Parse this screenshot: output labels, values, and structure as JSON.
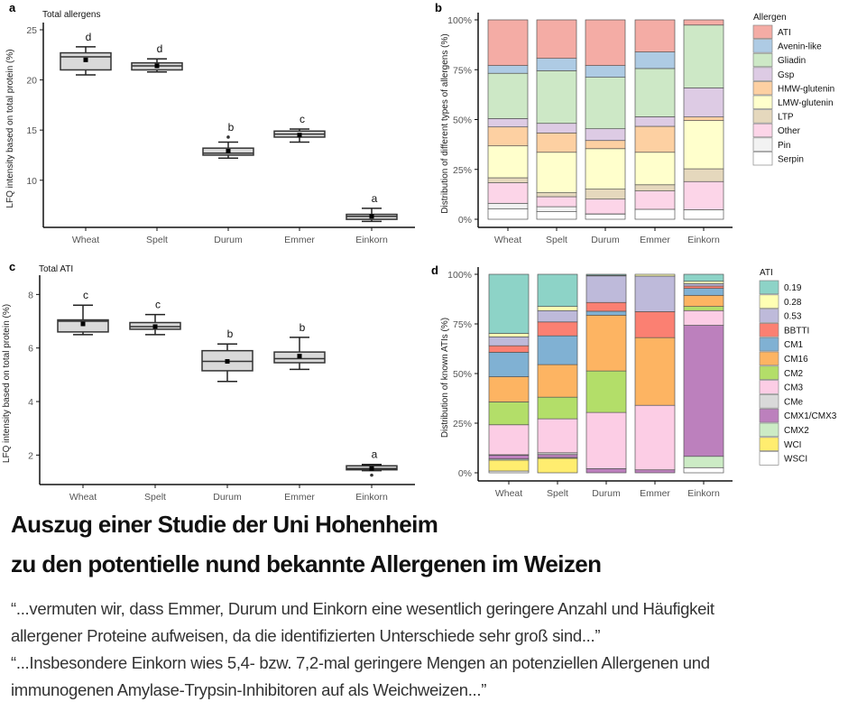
{
  "chart_data": [
    {
      "panel": "a",
      "type": "box",
      "title": "Total allergens",
      "ylabel": "LFQ intensity based on total protein (%)",
      "categories": [
        "Wheat",
        "Spelt",
        "Durum",
        "Emmer",
        "Einkorn"
      ],
      "ylim": [
        5.3,
        25
      ],
      "yticks": [
        10,
        15,
        20,
        25
      ],
      "boxes": [
        {
          "low": 20.5,
          "q1": 21.0,
          "median": 22.3,
          "q3": 22.7,
          "high": 23.3,
          "mean": 22.0,
          "outliers": [],
          "letter": "d"
        },
        {
          "low": 20.8,
          "q1": 21.0,
          "median": 21.4,
          "q3": 21.7,
          "high": 22.1,
          "mean": 21.4,
          "outliers": [],
          "letter": "d"
        },
        {
          "low": 12.2,
          "q1": 12.5,
          "median": 12.7,
          "q3": 13.2,
          "high": 13.8,
          "mean": 12.9,
          "outliers": [
            14.3
          ],
          "letter": "b"
        },
        {
          "low": 13.8,
          "q1": 14.3,
          "median": 14.6,
          "q3": 14.9,
          "high": 15.1,
          "mean": 14.5,
          "outliers": [],
          "letter": "c"
        },
        {
          "low": 5.9,
          "q1": 6.1,
          "median": 6.4,
          "q3": 6.6,
          "high": 7.2,
          "mean": 6.4,
          "outliers": [],
          "letter": "a"
        }
      ],
      "box_color": "#d9d9d9"
    },
    {
      "panel": "b",
      "type": "stacked-bar",
      "ylabel": "Distribution of different types of allergens (%)",
      "categories": [
        "Wheat",
        "Spelt",
        "Durum",
        "Emmer",
        "Einkorn"
      ],
      "ylim": [
        0,
        100
      ],
      "yticks": [
        "0%",
        "25%",
        "50%",
        "75%",
        "100%"
      ],
      "legend_title": "Allergen",
      "legend_position": "right",
      "series": [
        {
          "name": "ATI",
          "color": "#f4aca5",
          "values": [
            22.9,
            19.3,
            22.9,
            16.1,
            2.6
          ]
        },
        {
          "name": "Avenin-like",
          "color": "#aecbe4",
          "values": [
            3.9,
            6.2,
            5.9,
            8.3,
            0
          ]
        },
        {
          "name": "Gliadin",
          "color": "#cde8c6",
          "values": [
            22.7,
            26.4,
            25.8,
            24.2,
            31.5
          ]
        },
        {
          "name": "Gsp",
          "color": "#ddcbe4",
          "values": [
            4.2,
            4.8,
            5.9,
            4.8,
            14.6
          ]
        },
        {
          "name": "HMW-glutenin",
          "color": "#fdd0a2",
          "values": [
            9.5,
            9.7,
            4.1,
            13.0,
            1.8
          ]
        },
        {
          "name": "LMW-glutenin",
          "color": "#ffffcc",
          "values": [
            16.0,
            20.3,
            20.3,
            16.3,
            24.2
          ]
        },
        {
          "name": "LTP",
          "color": "#e5d8bd",
          "values": [
            2.5,
            2.0,
            5.0,
            3.1,
            6.4
          ]
        },
        {
          "name": "Other",
          "color": "#fcd5e8",
          "values": [
            10.3,
            5.0,
            7.4,
            9.2,
            14.1
          ]
        },
        {
          "name": "Pin",
          "color": "#f2f2f2",
          "values": [
            2.7,
            2.5,
            0.1,
            0,
            0
          ]
        },
        {
          "name": "Serpin",
          "color": "#ffffff",
          "values": [
            5.3,
            3.8,
            2.6,
            5.0,
            4.8
          ]
        }
      ]
    },
    {
      "panel": "c",
      "type": "box",
      "title": "Total ATI",
      "ylabel": "LFQ intensity based on total protein (%)",
      "categories": [
        "Wheat",
        "Spelt",
        "Durum",
        "Emmer",
        "Einkorn"
      ],
      "ylim": [
        0.9,
        8.45
      ],
      "yticks": [
        2,
        4,
        6,
        8
      ],
      "boxes": [
        {
          "low": 6.5,
          "q1": 6.6,
          "median": 7.0,
          "q3": 7.05,
          "high": 7.6,
          "mean": 6.9,
          "outliers": [],
          "letter": "c"
        },
        {
          "low": 6.5,
          "q1": 6.7,
          "median": 6.8,
          "q3": 6.95,
          "high": 7.25,
          "mean": 6.8,
          "outliers": [],
          "letter": "c"
        },
        {
          "low": 4.75,
          "q1": 5.15,
          "median": 5.5,
          "q3": 5.9,
          "high": 6.15,
          "mean": 5.5,
          "outliers": [],
          "letter": "b"
        },
        {
          "low": 5.2,
          "q1": 5.45,
          "median": 5.6,
          "q3": 5.85,
          "high": 6.4,
          "mean": 5.7,
          "outliers": [],
          "letter": "b"
        },
        {
          "low": 1.42,
          "q1": 1.45,
          "median": 1.5,
          "q3": 1.6,
          "high": 1.65,
          "mean": 1.5,
          "outliers": [
            1.25
          ],
          "letter": "a"
        }
      ],
      "box_color": "#d9d9d9"
    },
    {
      "panel": "d",
      "type": "stacked-bar",
      "ylabel": "Distribution of known ATIs (%)",
      "categories": [
        "Wheat",
        "Spelt",
        "Durum",
        "Emmer",
        "Einkorn"
      ],
      "ylim": [
        0,
        100
      ],
      "yticks": [
        "0%",
        "25%",
        "50%",
        "75%",
        "100%"
      ],
      "legend_title": "ATI",
      "legend_position": "right",
      "series": [
        {
          "name": "0.19",
          "color": "#8dd3c7",
          "values": [
            29.8,
            16.2,
            0.5,
            0,
            3.5
          ]
        },
        {
          "name": "0.28",
          "color": "#ffffb3",
          "values": [
            1.7,
            2.1,
            0.3,
            0.9,
            1.2
          ]
        },
        {
          "name": "0.53",
          "color": "#bebada",
          "values": [
            4.5,
            5.7,
            13.4,
            17.9,
            1.2
          ]
        },
        {
          "name": "BBTTI",
          "color": "#fb8072",
          "values": [
            3.3,
            7.0,
            4.4,
            13.1,
            1.2
          ]
        },
        {
          "name": "CM1",
          "color": "#80b1d3",
          "values": [
            12.3,
            14.5,
            2.0,
            0,
            3.5
          ]
        },
        {
          "name": "CM16",
          "color": "#fdb462",
          "values": [
            12.7,
            16.4,
            28.1,
            34.1,
            5.6
          ]
        },
        {
          "name": "CM2",
          "color": "#b3de69",
          "values": [
            11.5,
            10.9,
            20.9,
            0,
            2.1
          ]
        },
        {
          "name": "CM3",
          "color": "#fccde5",
          "values": [
            15.1,
            17.1,
            28.3,
            32.5,
            7.4
          ]
        },
        {
          "name": "CMe",
          "color": "#d9d9d9",
          "values": [
            0.3,
            0.9,
            0,
            0,
            0
          ]
        },
        {
          "name": "CMX1/CMX3",
          "color": "#bc80bd",
          "values": [
            1.8,
            1.5,
            2.1,
            1.5,
            66.0
          ]
        },
        {
          "name": "CMX2",
          "color": "#ccebc5",
          "values": [
            0.6,
            0.4,
            0,
            0,
            5.7
          ]
        },
        {
          "name": "WCI",
          "color": "#ffed6f",
          "values": [
            5.5,
            7.3,
            0,
            0,
            0
          ]
        },
        {
          "name": "WSCI",
          "color": "#ffffff",
          "values": [
            0.9,
            0,
            0,
            0,
            2.6
          ]
        }
      ]
    }
  ],
  "text": {
    "heading_line1": "Auszug einer Studie der Uni Hohenheim",
    "heading_line2": "zu den potentielle  nund bekannte Allergenen im Weizen",
    "quote_line1": "“...vermuten wir, dass Emmer, Durum und Einkorn eine wesentlich geringere Anzahl und Häufigkeit",
    "quote_line2": "allergener Proteine aufweisen, da die identifizierten Unterschiede sehr groß sind...”",
    "quote_line3": "“...Insbesondere Einkorn wies 5,4- bzw. 7,2-mal geringere Mengen an potenziellen Allergenen und",
    "quote_line4": "immunogenen Amylase-Trypsin-Inhibitoren auf als Weichweizen...”"
  }
}
